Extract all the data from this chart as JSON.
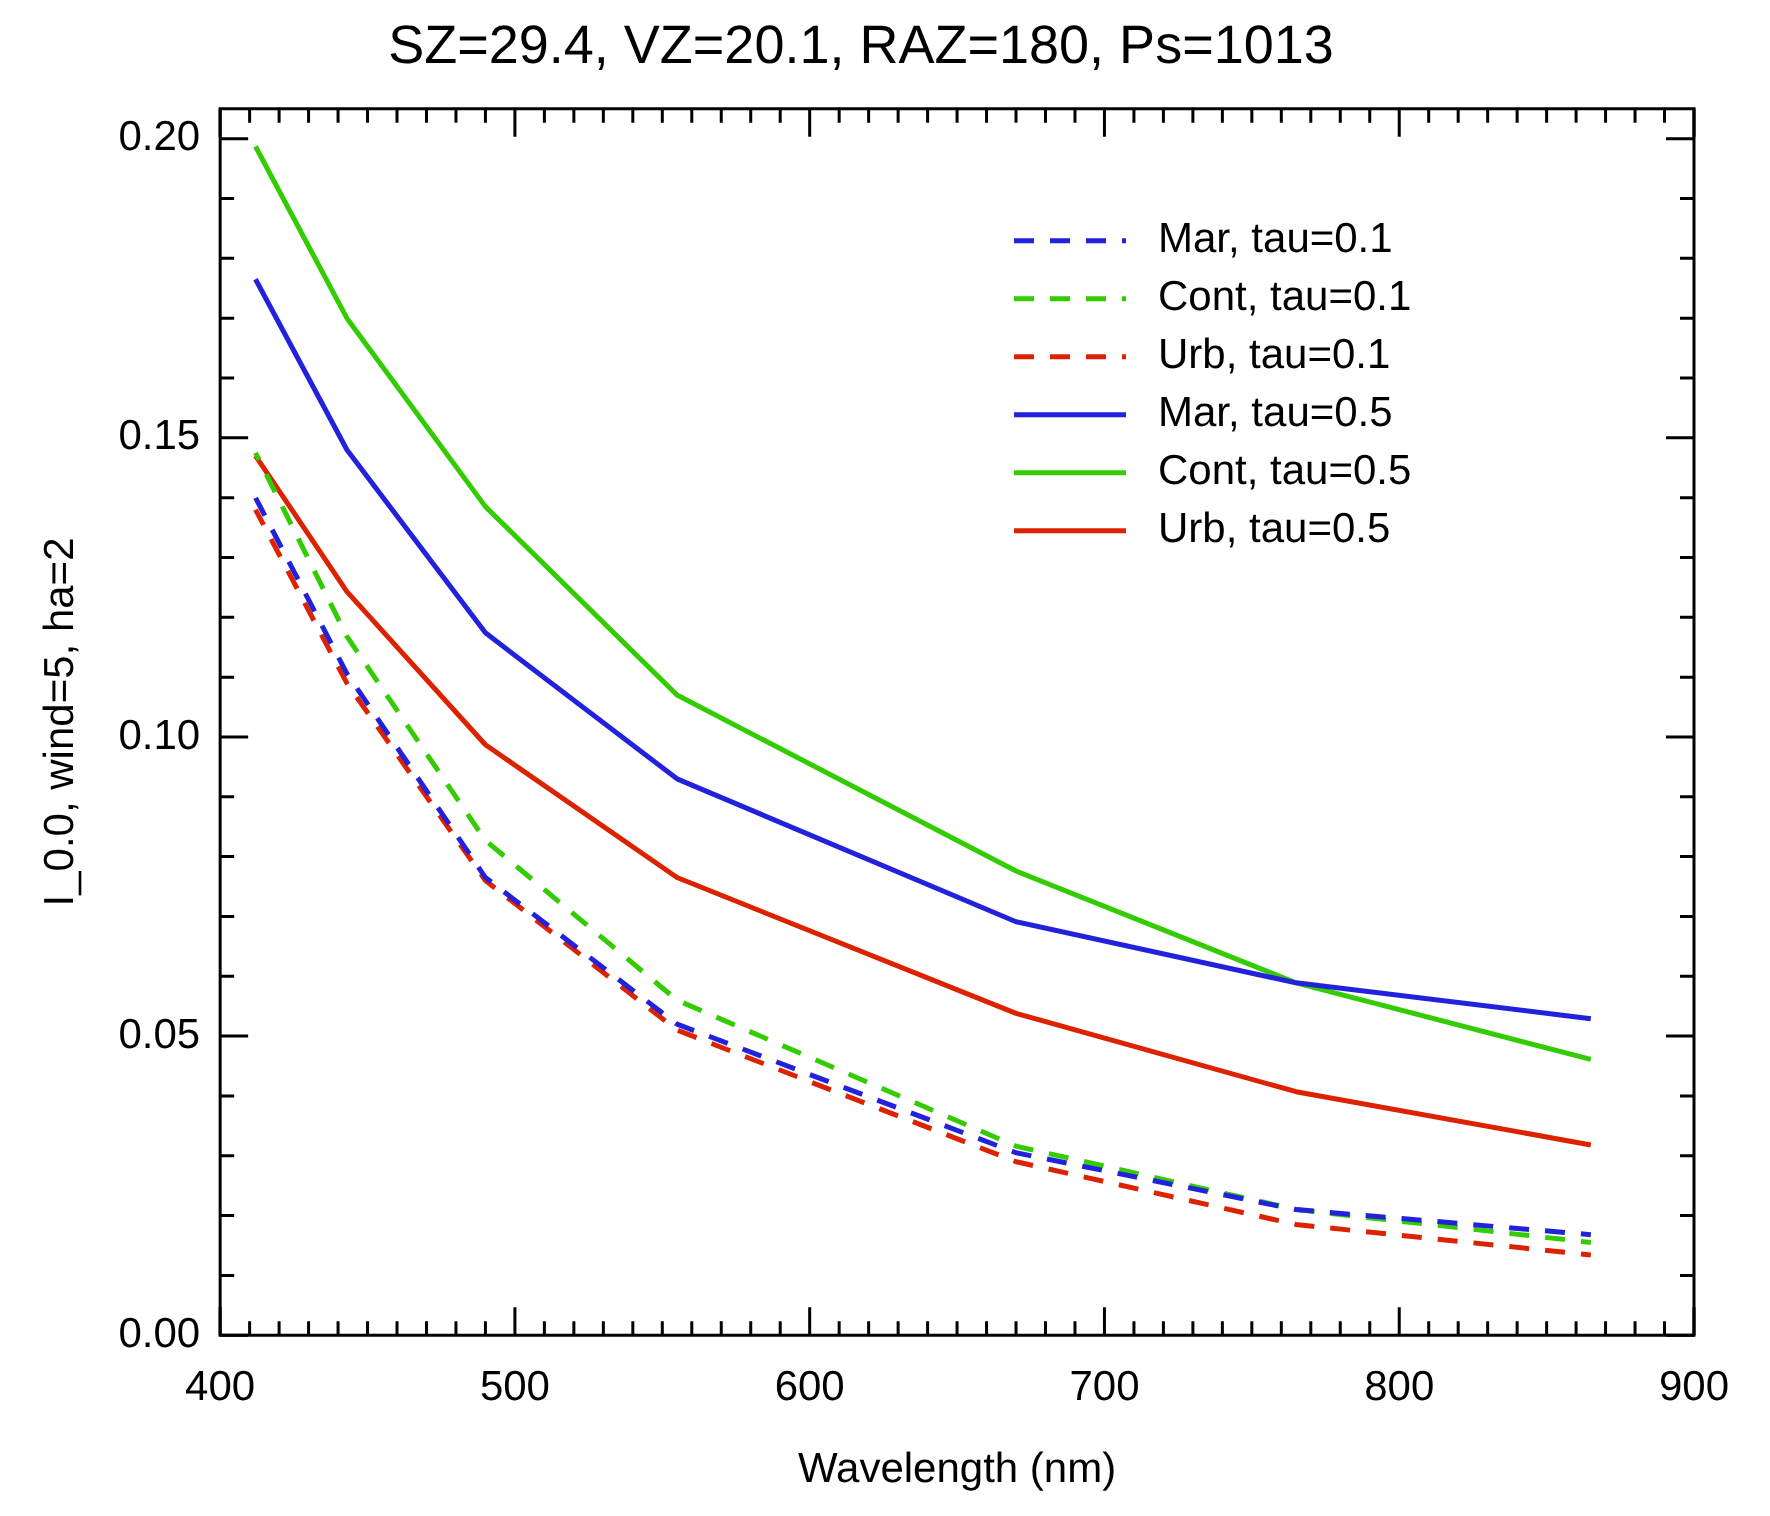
{
  "chart_data": {
    "type": "line",
    "title": "SZ=29.4, VZ=20.1, RAZ=180, Ps=1013",
    "xlabel": "Wavelength (nm)",
    "ylabel": "I_0.0, wind=5, ha=2",
    "x": [
      412,
      443,
      490,
      555,
      670,
      765,
      865
    ],
    "series": [
      {
        "name": "Mar, tau=0.1",
        "color": "#2222dd",
        "line_style": "dashed",
        "values": [
          0.14,
          0.1106,
          0.0765,
          0.052,
          0.0305,
          0.021,
          0.0168
        ]
      },
      {
        "name": "Cont, tau=0.1",
        "color": "#33cc00",
        "line_style": "dashed",
        "values": [
          0.1475,
          0.1168,
          0.0827,
          0.056,
          0.0316,
          0.021,
          0.0155
        ]
      },
      {
        "name": "Urb, tau=0.1",
        "color": "#dd2200",
        "line_style": "dashed",
        "values": [
          0.138,
          0.109,
          0.076,
          0.051,
          0.029,
          0.0185,
          0.0134
        ]
      },
      {
        "name": "Mar, tau=0.5",
        "color": "#2222dd",
        "line_style": "solid",
        "values": [
          0.1765,
          0.148,
          0.1174,
          0.093,
          0.0691,
          0.0589,
          0.0529
        ]
      },
      {
        "name": "Cont, tau=0.5",
        "color": "#33cc00",
        "line_style": "solid",
        "values": [
          0.1987,
          0.17,
          0.1385,
          0.107,
          0.0776,
          0.0589,
          0.0461
        ]
      },
      {
        "name": "Urb, tau=0.5",
        "color": "#dd2200",
        "line_style": "solid",
        "values": [
          0.147,
          0.1243,
          0.0987,
          0.0765,
          0.0538,
          0.0407,
          0.0318
        ]
      }
    ],
    "xlim": [
      400,
      900
    ],
    "xticks": [
      400,
      {
        "value": 410,
        "label": null
      },
      {
        "value": 420,
        "label": null
      },
      {
        "value": 430,
        "label": null
      },
      {
        "value": 440,
        "label": null
      },
      {
        "value": 450,
        "label": null
      },
      {
        "value": 460,
        "label": null
      },
      {
        "value": 470,
        "label": null
      },
      {
        "value": 480,
        "label": null
      },
      {
        "value": 490,
        "label": null
      },
      500,
      {
        "value": 510,
        "label": null
      },
      {
        "value": 520,
        "label": null
      },
      {
        "value": 530,
        "label": null
      },
      {
        "value": 540,
        "label": null
      },
      {
        "value": 550,
        "label": null
      },
      {
        "value": 560,
        "label": null
      },
      {
        "value": 570,
        "label": null
      },
      {
        "value": 580,
        "label": null
      },
      {
        "value": 590,
        "label": null
      },
      600,
      {
        "value": 610,
        "label": null
      },
      {
        "value": 620,
        "label": null
      },
      {
        "value": 630,
        "label": null
      },
      {
        "value": 640,
        "label": null
      },
      {
        "value": 650,
        "label": null
      },
      {
        "value": 660,
        "label": null
      },
      {
        "value": 670,
        "label": null
      },
      {
        "value": 680,
        "label": null
      },
      {
        "value": 690,
        "label": null
      },
      700,
      {
        "value": 710,
        "label": null
      },
      {
        "value": 720,
        "label": null
      },
      {
        "value": 730,
        "label": null
      },
      {
        "value": 740,
        "label": null
      },
      {
        "value": 750,
        "label": null
      },
      {
        "value": 760,
        "label": null
      },
      {
        "value": 770,
        "label": null
      },
      {
        "value": 780,
        "label": null
      },
      {
        "value": 790,
        "label": null
      },
      800,
      {
        "value": 810,
        "label": null
      },
      {
        "value": 820,
        "label": null
      },
      {
        "value": 830,
        "label": null
      },
      {
        "value": 840,
        "label": null
      },
      {
        "value": 850,
        "label": null
      },
      {
        "value": 860,
        "label": null
      },
      {
        "value": 870,
        "label": null
      },
      {
        "value": 880,
        "label": null
      },
      {
        "value": 890,
        "label": null
      },
      900
    ],
    "ylim": [
      0,
      0.205
    ],
    "yticks": [
      {
        "value": 0,
        "label": "0.00"
      },
      {
        "value": 0.01,
        "label": null
      },
      {
        "value": 0.02,
        "label": null
      },
      {
        "value": 0.03,
        "label": null
      },
      {
        "value": 0.04,
        "label": null
      },
      0.05,
      {
        "value": 0.06,
        "label": null
      },
      {
        "value": 0.07,
        "label": null
      },
      {
        "value": 0.08,
        "label": null
      },
      {
        "value": 0.09,
        "label": null
      },
      {
        "value": 0.1,
        "label": "0.10"
      },
      {
        "value": 0.11,
        "label": null
      },
      {
        "value": 0.12,
        "label": null
      },
      {
        "value": 0.13,
        "label": null
      },
      {
        "value": 0.14,
        "label": null
      },
      0.15,
      {
        "value": 0.16,
        "label": null
      },
      {
        "value": 0.17,
        "label": null
      },
      {
        "value": 0.18,
        "label": null
      },
      {
        "value": 0.19,
        "label": null
      },
      {
        "value": 0.2,
        "label": "0.20"
      }
    ],
    "legend": "top right",
    "grid": false,
    "marker": "none"
  }
}
